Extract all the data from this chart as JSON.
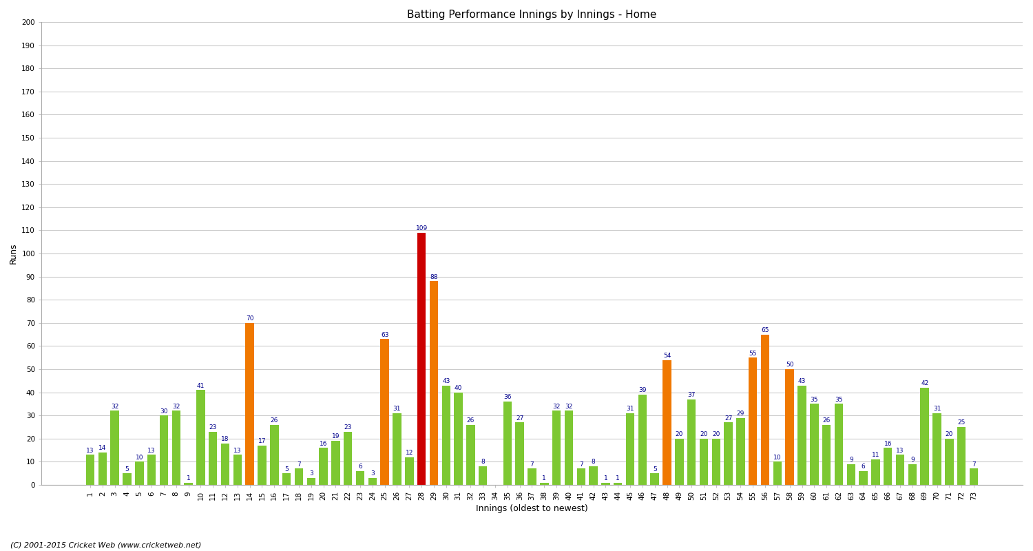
{
  "title": "Batting Performance Innings by Innings - Home",
  "xlabel": "Innings (oldest to newest)",
  "ylabel": "Runs",
  "footer": "(C) 2001-2015 Cricket Web (www.cricketweb.net)",
  "ylim": [
    0,
    200
  ],
  "yticks": [
    0,
    10,
    20,
    30,
    40,
    50,
    60,
    70,
    80,
    90,
    100,
    110,
    120,
    130,
    140,
    150,
    160,
    170,
    180,
    190,
    200
  ],
  "innings": [
    1,
    2,
    3,
    4,
    5,
    6,
    7,
    8,
    9,
    10,
    11,
    12,
    13,
    14,
    15,
    16,
    17,
    18,
    19,
    20,
    21,
    22,
    23,
    24,
    25,
    26,
    27,
    28,
    29,
    30,
    31,
    32,
    33,
    34,
    35,
    36,
    37,
    38,
    39,
    40,
    41,
    42,
    43,
    44,
    45,
    46,
    47,
    48,
    49,
    50,
    51,
    52,
    53,
    54,
    55,
    56,
    57,
    58,
    59,
    60,
    61,
    62,
    63,
    64,
    65,
    66,
    67,
    68,
    69,
    70,
    71,
    72,
    73
  ],
  "values": [
    13,
    14,
    32,
    5,
    10,
    13,
    30,
    32,
    1,
    41,
    23,
    18,
    13,
    70,
    17,
    26,
    5,
    7,
    3,
    16,
    19,
    23,
    6,
    3,
    63,
    31,
    12,
    109,
    88,
    43,
    40,
    26,
    8,
    0,
    36,
    27,
    7,
    1,
    32,
    32,
    7,
    8,
    1,
    1,
    31,
    39,
    5,
    54,
    20,
    37,
    20,
    20,
    27,
    29,
    55,
    65,
    10,
    50,
    43,
    35,
    26,
    35,
    9,
    6,
    11,
    16,
    13,
    9,
    42,
    31,
    20,
    25,
    7
  ],
  "colors": [
    "#7dc832",
    "#7dc832",
    "#7dc832",
    "#7dc832",
    "#7dc832",
    "#7dc832",
    "#7dc832",
    "#7dc832",
    "#7dc832",
    "#7dc832",
    "#7dc832",
    "#7dc832",
    "#7dc832",
    "#f07800",
    "#7dc832",
    "#7dc832",
    "#7dc832",
    "#7dc832",
    "#7dc832",
    "#7dc832",
    "#7dc832",
    "#7dc832",
    "#7dc832",
    "#7dc832",
    "#f07800",
    "#7dc832",
    "#7dc832",
    "#cc0000",
    "#f07800",
    "#7dc832",
    "#7dc832",
    "#7dc832",
    "#7dc832",
    "#7dc832",
    "#7dc832",
    "#7dc832",
    "#7dc832",
    "#7dc832",
    "#7dc832",
    "#7dc832",
    "#7dc832",
    "#7dc832",
    "#7dc832",
    "#7dc832",
    "#7dc832",
    "#7dc832",
    "#7dc832",
    "#f07800",
    "#7dc832",
    "#7dc832",
    "#7dc832",
    "#7dc832",
    "#7dc832",
    "#7dc832",
    "#f07800",
    "#f07800",
    "#7dc832",
    "#f07800",
    "#7dc832",
    "#7dc832",
    "#7dc832",
    "#7dc832",
    "#7dc832",
    "#7dc832",
    "#7dc832",
    "#7dc832",
    "#7dc832",
    "#7dc832",
    "#7dc832",
    "#7dc832",
    "#7dc832",
    "#7dc832",
    "#7dc832"
  ],
  "bar_width": 0.7,
  "label_fontsize": 6.5,
  "label_color": "#00008b",
  "title_fontsize": 11,
  "axis_fontsize": 9,
  "tick_fontsize": 7.5,
  "bg_color": "#ffffff",
  "grid_color": "#cccccc"
}
